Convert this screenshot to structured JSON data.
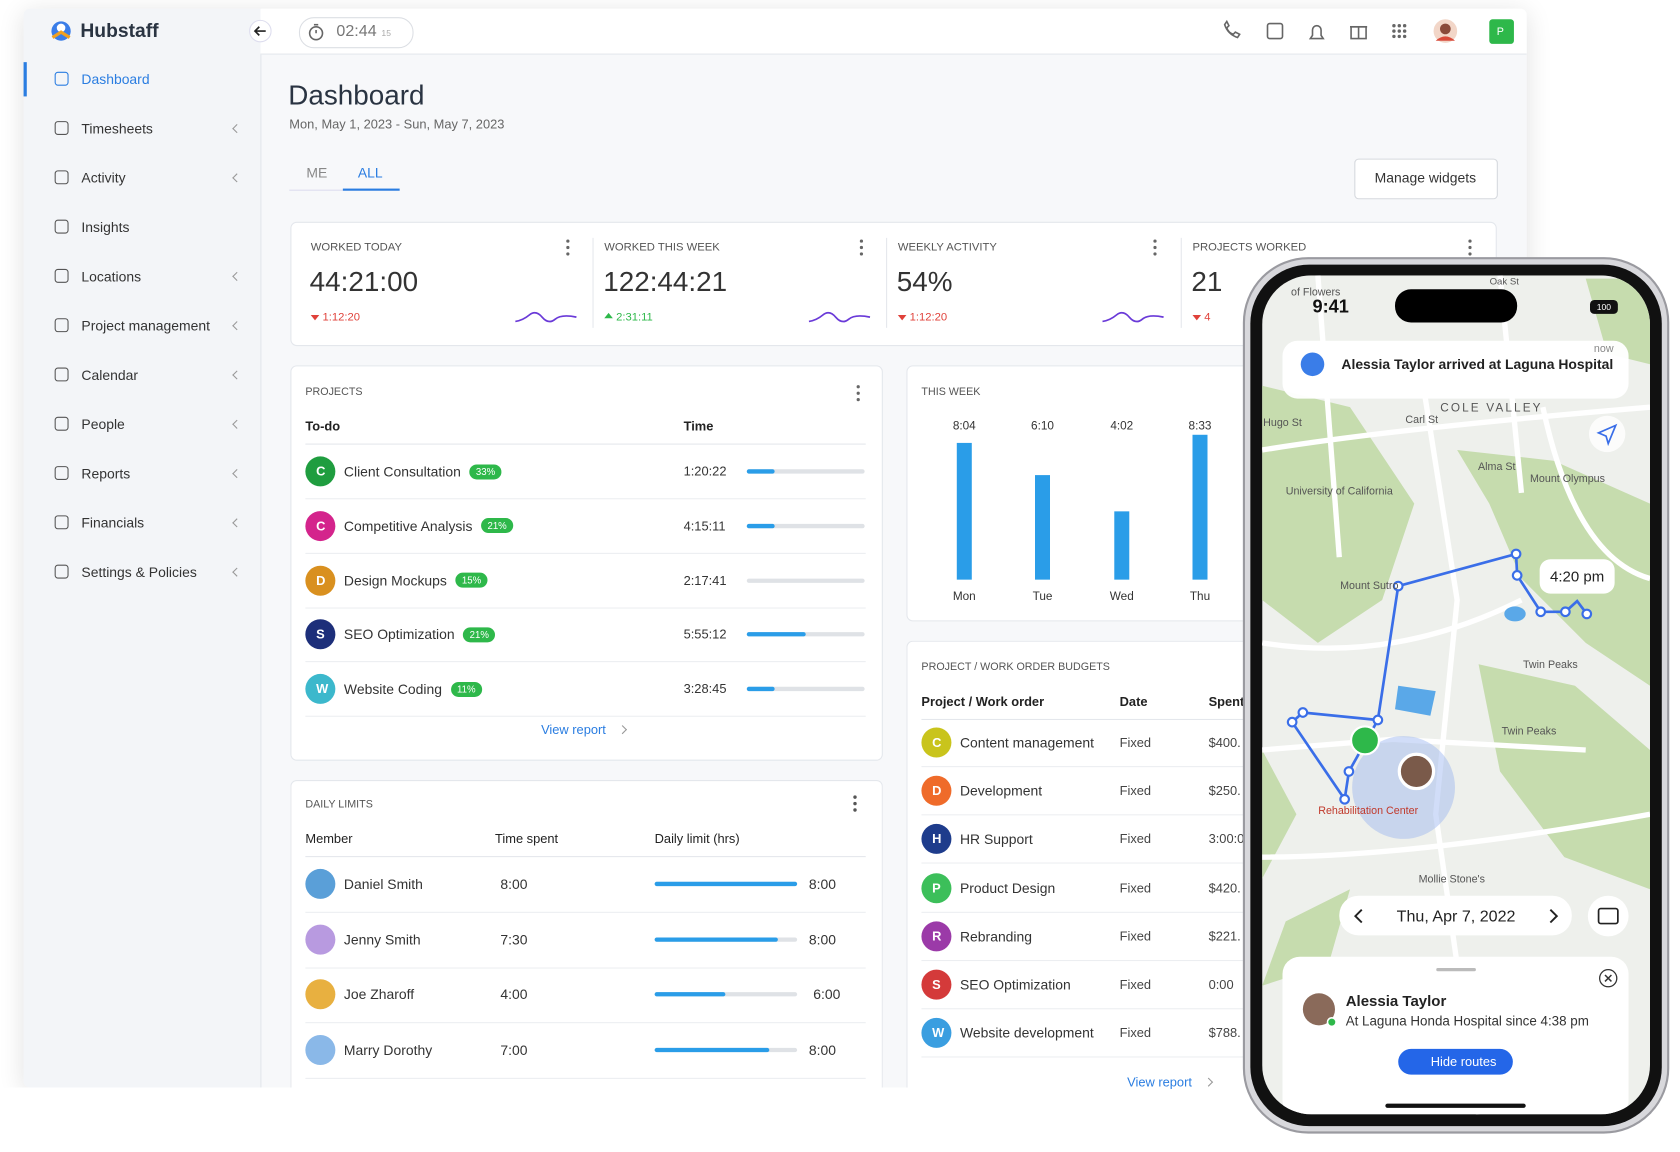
{
  "app": {
    "brand": "Hubstaff",
    "timer": "02:44",
    "timer_seconds": "15",
    "user_initial": "P"
  },
  "sidebar": {
    "items": [
      "Dashboard",
      "Timesheets",
      "Activity",
      "Insights",
      "Locations",
      "Project management",
      "Calendar",
      "People",
      "Reports",
      "Financials",
      "Settings & Policies"
    ]
  },
  "header": {
    "title": "Dashboard",
    "date_range": "Mon, May 1, 2023 - Sun, May 7, 2023",
    "tabs": [
      "ME",
      "ALL"
    ],
    "manage": "Manage widgets"
  },
  "stats": [
    {
      "label": "WORKED TODAY",
      "value": "44:21:00",
      "change": "1:12:20"
    },
    {
      "label": "WORKED THIS WEEK",
      "value": "122:44:21",
      "change": "2:31:11"
    },
    {
      "label": "WEEKLY ACTIVITY",
      "value": "54%",
      "change": "1:12:20"
    },
    {
      "label": "PROJECTS WORKED",
      "value": "21",
      "change": "4"
    }
  ],
  "projects": {
    "title": "PROJECTS",
    "columns": [
      "To-do",
      "Time"
    ],
    "rows": [
      {
        "initial": "C",
        "name": "Client Consultation",
        "percent": "33%",
        "time": "1:20:22"
      },
      {
        "initial": "C",
        "name": "Competitive Analysis",
        "percent": "21%",
        "time": "4:15:11"
      },
      {
        "initial": "D",
        "name": "Design Mockups",
        "percent": "15%",
        "time": "2:17:41"
      },
      {
        "initial": "S",
        "name": "SEO Optimization",
        "percent": "21%",
        "time": "5:55:12"
      },
      {
        "initial": "W",
        "name": "Website Coding",
        "percent": "11%",
        "time": "3:28:45"
      }
    ],
    "link": "View report"
  },
  "daily_limits": {
    "title": "DAILY LIMITS",
    "columns": [
      "Member",
      "Time spent",
      "Daily limit (hrs)"
    ],
    "rows": [
      {
        "name": "Daniel Smith",
        "spent": "8:00",
        "limit": "8:00"
      },
      {
        "name": "Jenny Smith",
        "spent": "7:30",
        "limit": "8:00"
      },
      {
        "name": "Joe Zharoff",
        "spent": "4:00",
        "limit": "6:00"
      },
      {
        "name": "Marry Dorothy",
        "spent": "7:00",
        "limit": "8:00"
      }
    ]
  },
  "this_week": {
    "title": "THIS WEEK",
    "categories": [
      "Mon",
      "Tue",
      "Wed",
      "Thu"
    ],
    "values": [
      8.07,
      6.17,
      4.03,
      8.55
    ],
    "value_labels": [
      "8:04",
      "6:10",
      "4:02",
      "8:33"
    ],
    "ylim": [
      0,
      8.6
    ]
  },
  "budgets": {
    "title": "PROJECT / WORK ORDER BUDGETS",
    "columns": [
      "Project / Work order",
      "Date",
      "Spent"
    ],
    "rows": [
      {
        "initial": "C",
        "name": "Content management",
        "date": "Fixed",
        "spent": "$400."
      },
      {
        "initial": "D",
        "name": "Development",
        "date": "Fixed",
        "spent": "$250."
      },
      {
        "initial": "H",
        "name": "HR Support",
        "date": "Fixed",
        "spent": "3:00:0"
      },
      {
        "initial": "P",
        "name": "Product Design",
        "date": "Fixed",
        "spent": "$420."
      },
      {
        "initial": "R",
        "name": "Rebranding",
        "date": "Fixed",
        "spent": "$221."
      },
      {
        "initial": "S",
        "name": "SEO Optimization",
        "date": "Fixed",
        "spent": "0:00"
      },
      {
        "initial": "W",
        "name": "Website development",
        "date": "Fixed",
        "spent": "$788."
      }
    ],
    "link": "View report"
  },
  "phone": {
    "time": "9:41",
    "battery": "100",
    "notification": "Alessia Taylor arrived at Laguna Hospital",
    "notif_time": "now",
    "map_labels": [
      "Oak St",
      "COLE VALLEY",
      "Carl St",
      "Hugo St",
      "University of California",
      "Alma St",
      "Mount Olympus",
      "Mount Sutro",
      "Twin Peaks",
      "Twin Peaks",
      "Rehabilitation Center",
      "Mollie Stone's",
      "of Flowers"
    ],
    "time_bubble": "4:20 pm",
    "date": "Thu, Apr 7, 2022",
    "person": "Alessia Taylor",
    "status": "At Laguna Honda Hospital since 4:38 pm",
    "button": "Hide routes"
  }
}
